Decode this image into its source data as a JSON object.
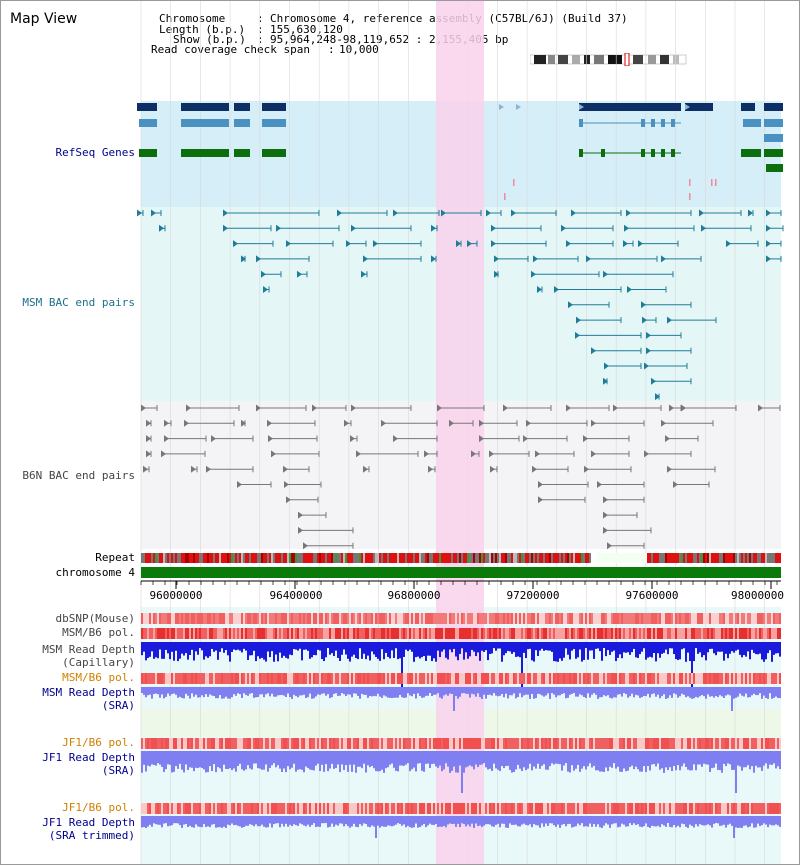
{
  "header": {
    "title": "Map View",
    "chromosome_label": "Chromosome",
    "chromosome_value": "Chromosome 4, reference assembly (C57BL/6J) (Build 37)",
    "length_label": "Length (b.p.)",
    "length_value": "155,630,120",
    "show_label": "Show (b.p.)",
    "show_value": "95,964,248-98,119,652 : 2,155,405 bp",
    "coverage_label": "Read coverage check span",
    "coverage_value": "10,000"
  },
  "tracks": {
    "refseq": "RefSeq Genes",
    "msm_bac": "MSM BAC end pairs",
    "b6n_bac": "B6N BAC end pairs",
    "repeat": "Repeat",
    "chromosome": "chromosome 4",
    "dbsnp": "dbSNP(Mouse)",
    "msm_b6_pol_1": "MSM/B6 pol.",
    "msm_depth_cap_1": "MSM Read Depth",
    "msm_depth_cap_2": "(Capillary)",
    "msm_b6_pol_2": "MSM/B6 pol.",
    "msm_depth_sra_1": "MSM Read Depth",
    "msm_depth_sra_2": "(SRA)",
    "jf1_b6_pol_1": "JF1/B6 pol.",
    "jf1_depth_sra_1": "JF1 Read Depth",
    "jf1_depth_sra_2": "(SRA)",
    "jf1_b6_pol_2": "JF1/B6 pol.",
    "jf1_depth_trim_1": "JF1 Read Depth",
    "jf1_depth_trim_2": "(SRA trimmed)"
  },
  "axis": {
    "ticks": [
      "96000000",
      "96400000",
      "96800000",
      "97200000",
      "97600000",
      "98000000"
    ]
  },
  "colors": {
    "refseq_bg": "#d6eef8",
    "msm_bg": "#e4f6f6",
    "b6n_bg": "#f4f4f6",
    "highlight": "#f9d2ec",
    "refseq_dark": "#0e2f66",
    "refseq_mid": "#4a90c0",
    "refseq_green": "#0c6e0c",
    "msm_feature": "#1f7d9a",
    "b6n_feature": "#777777",
    "depth_dark": "#1a1adc",
    "depth_light": "#7f7ff2",
    "chrom_bar": "#0a7a0a"
  }
}
